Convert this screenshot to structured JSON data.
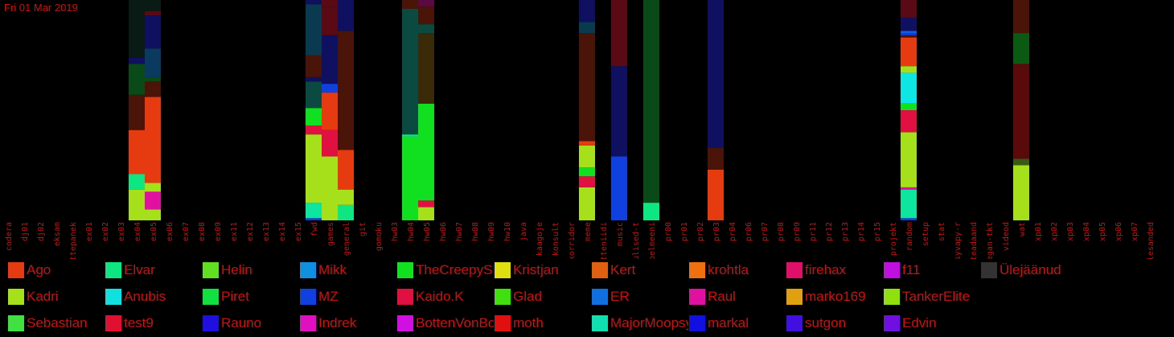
{
  "date": "Fri 01 Mar 2019",
  "chart_data": {
    "type": "bar",
    "stacked": true,
    "ylim": [
      0,
      100
    ],
    "categories": [
      "codera",
      "dj01",
      "dj02",
      "eksam",
      "ettepanek",
      "ex01",
      "ex02",
      "ex03",
      "ex04",
      "ex05",
      "ex06",
      "ex07",
      "ex08",
      "ex09",
      "ex11",
      "ex12",
      "ex13",
      "ex14",
      "ex15",
      "fwd",
      "games",
      "general",
      "git",
      "gomoku",
      "hw03",
      "hw04",
      "hw05",
      "hw06",
      "hw07",
      "hw08",
      "hw09",
      "hw10",
      "java",
      "kaagoje",
      "konsult",
      "korridor",
      "meme",
      "mitteniidi",
      "music",
      "olulised-t",
      "pelmeeni",
      "pr00",
      "pr01",
      "pr02",
      "pr03",
      "pr04",
      "pr06",
      "pr07",
      "pr08",
      "pr09",
      "pr11",
      "pr12",
      "pr13",
      "pr14",
      "pr15",
      "projekt",
      "random",
      "setup",
      "stat",
      "syvapy-r",
      "teadaand",
      "vegan-tkt",
      "videod",
      "wat",
      "xp01",
      "xp02",
      "xp03",
      "xp04",
      "xp05",
      "xp06",
      "xp07",
      "ülesanded"
    ],
    "bars": [
      {
        "category": "ex04",
        "segments": [
          {
            "color": "#a6e01a",
            "value": 14
          },
          {
            "color": "#0ee682",
            "value": 7
          },
          {
            "color": "#e63a10",
            "value": 20
          },
          {
            "color": "#4a1508",
            "value": 16
          },
          {
            "color": "#0a4a18",
            "value": 14
          },
          {
            "color": "#101060",
            "value": 3
          },
          {
            "color": "#0a1a14",
            "value": 26
          }
        ]
      },
      {
        "category": "ex05",
        "segments": [
          {
            "color": "#a6e01a",
            "value": 5
          },
          {
            "color": "#e010a0",
            "value": 8
          },
          {
            "color": "#a6e01a",
            "value": 4
          },
          {
            "color": "#e63a10",
            "value": 39
          },
          {
            "color": "#4a1508",
            "value": 7
          },
          {
            "color": "#0a4a14",
            "value": 2
          },
          {
            "color": "#0a3a60",
            "value": 13
          },
          {
            "color": "#101060",
            "value": 15
          },
          {
            "color": "#5a0a14",
            "value": 2
          },
          {
            "color": "#0a1a14",
            "value": 5
          }
        ]
      },
      {
        "category": "fwd",
        "segments": [
          {
            "color": "#1040e0",
            "value": 1
          },
          {
            "color": "#0ee6a0",
            "value": 7
          },
          {
            "color": "#a6e01a",
            "value": 31
          },
          {
            "color": "#e01040",
            "value": 4
          },
          {
            "color": "#10e020",
            "value": 8
          },
          {
            "color": "#0a4a40",
            "value": 12
          },
          {
            "color": "#101060",
            "value": 2
          },
          {
            "color": "#4a1508",
            "value": 10
          },
          {
            "color": "#0a3a50",
            "value": 23
          },
          {
            "color": "#101060",
            "value": 2
          }
        ]
      },
      {
        "category": "games",
        "segments": [
          {
            "color": "#a6e01a",
            "value": 29
          },
          {
            "color": "#e01040",
            "value": 12
          },
          {
            "color": "#e63a10",
            "value": 17
          },
          {
            "color": "#1040e0",
            "value": 4
          },
          {
            "color": "#101060",
            "value": 22
          },
          {
            "color": "#5a0a14",
            "value": 13
          },
          {
            "color": "#5a0a14",
            "value": 3
          }
        ]
      },
      {
        "category": "general",
        "segments": [
          {
            "color": "#0ee682",
            "value": 7
          },
          {
            "color": "#a6e01a",
            "value": 7
          },
          {
            "color": "#e63a10",
            "value": 18
          },
          {
            "color": "#4a1508",
            "value": 54
          },
          {
            "color": "#101060",
            "value": 14
          }
        ]
      },
      {
        "category": "hw04",
        "segments": [
          {
            "color": "#10e020",
            "value": 38
          },
          {
            "color": "#0ee682",
            "value": 1
          },
          {
            "color": "#0a4a40",
            "value": 57
          },
          {
            "color": "#4a1508",
            "value": 4
          }
        ]
      },
      {
        "category": "hw05",
        "segments": [
          {
            "color": "#a6e01a",
            "value": 6
          },
          {
            "color": "#e01040",
            "value": 3
          },
          {
            "color": "#10e020",
            "value": 44
          },
          {
            "color": "#3a2a08",
            "value": 32
          },
          {
            "color": "#0a4a40",
            "value": 4
          },
          {
            "color": "#4a1508",
            "value": 8
          },
          {
            "color": "#5a0a40",
            "value": 3
          }
        ]
      },
      {
        "category": "meme",
        "segments": [
          {
            "color": "#a6e01a",
            "value": 15
          },
          {
            "color": "#e01040",
            "value": 5
          },
          {
            "color": "#10e020",
            "value": 4
          },
          {
            "color": "#a6e01a",
            "value": 10
          },
          {
            "color": "#e63a10",
            "value": 2
          },
          {
            "color": "#4a1508",
            "value": 49
          },
          {
            "color": "#0a3a50",
            "value": 5
          },
          {
            "color": "#101060",
            "value": 10
          }
        ]
      },
      {
        "category": "music",
        "segments": [
          {
            "color": "#1040e0",
            "value": 29
          },
          {
            "color": "#101060",
            "value": 41
          },
          {
            "color": "#5a0a14",
            "value": 30
          }
        ]
      },
      {
        "category": "pelmeeni",
        "segments": [
          {
            "color": "#0ee682",
            "value": 8
          },
          {
            "color": "#0a4a18",
            "value": 92
          }
        ]
      },
      {
        "category": "pr03",
        "segments": [
          {
            "color": "#e63a10",
            "value": 23
          },
          {
            "color": "#4a1508",
            "value": 10
          },
          {
            "color": "#101060",
            "value": 67
          }
        ]
      },
      {
        "category": "random",
        "segments": [
          {
            "color": "#1040e0",
            "value": 1
          },
          {
            "color": "#0ee6a0",
            "value": 13
          },
          {
            "color": "#e010a0",
            "value": 1
          },
          {
            "color": "#a6e01a",
            "value": 25
          },
          {
            "color": "#e01040",
            "value": 10
          },
          {
            "color": "#10e020",
            "value": 3
          },
          {
            "color": "#0ee6e6",
            "value": 14
          },
          {
            "color": "#a6e01a",
            "value": 3
          },
          {
            "color": "#e63a10",
            "value": 13
          },
          {
            "color": "#4a1508",
            "value": 1
          },
          {
            "color": "#1040e0",
            "value": 1
          },
          {
            "color": "#1060e0",
            "value": 1
          },
          {
            "color": "#101060",
            "value": 6
          },
          {
            "color": "#5a0a14",
            "value": 8
          }
        ]
      },
      {
        "category": "wat",
        "segments": [
          {
            "color": "#a6e01a",
            "value": 25
          },
          {
            "color": "#3a5a14",
            "value": 3
          },
          {
            "color": "#5a0a0a",
            "value": 43
          },
          {
            "color": "#0a5a14",
            "value": 14
          },
          {
            "color": "#4a1508",
            "value": 15
          }
        ]
      }
    ]
  },
  "legend": [
    {
      "name": "Ago",
      "color": "#e63a10"
    },
    {
      "name": "Elvar",
      "color": "#0ee682"
    },
    {
      "name": "Helin",
      "color": "#60e020"
    },
    {
      "name": "Mikk",
      "color": "#1090e0"
    },
    {
      "name": "TheCreepySh",
      "color": "#10e020"
    },
    {
      "name": "Kristjan",
      "color": "#e0e010"
    },
    {
      "name": "Kert",
      "color": "#e06010"
    },
    {
      "name": "krohtla",
      "color": "#f07010"
    },
    {
      "name": "firehax",
      "color": "#e0106a"
    },
    {
      "name": "f11",
      "color": "#c010e0"
    },
    {
      "name": "Ülejäänud",
      "color": "#333333"
    },
    {
      "name": "Kadri",
      "color": "#a6e01a"
    },
    {
      "name": "Anubis",
      "color": "#10e0e0"
    },
    {
      "name": "Piret",
      "color": "#10e040"
    },
    {
      "name": "MZ",
      "color": "#1040e0"
    },
    {
      "name": "Kaido.K",
      "color": "#e01040"
    },
    {
      "name": "Glad",
      "color": "#40e010"
    },
    {
      "name": "ER",
      "color": "#1070e0"
    },
    {
      "name": "Raul",
      "color": "#e010a0"
    },
    {
      "name": "marko169",
      "color": "#e0a010"
    },
    {
      "name": "TankerElite",
      "color": "#90e010"
    },
    {
      "name": "Sebastian",
      "color": "#40e040"
    },
    {
      "name": "test9",
      "color": "#e01030"
    },
    {
      "name": "Rauno",
      "color": "#2010e0"
    },
    {
      "name": "Indrek",
      "color": "#e010c0"
    },
    {
      "name": "BottenVonBot",
      "color": "#d010e0"
    },
    {
      "name": "moth",
      "color": "#e01010"
    },
    {
      "name": "MajorMoopsy",
      "color": "#10e0b0"
    },
    {
      "name": "markal",
      "color": "#1010e0"
    },
    {
      "name": "sutgon",
      "color": "#4010e0"
    },
    {
      "name": "Edvin",
      "color": "#7010e0"
    }
  ]
}
